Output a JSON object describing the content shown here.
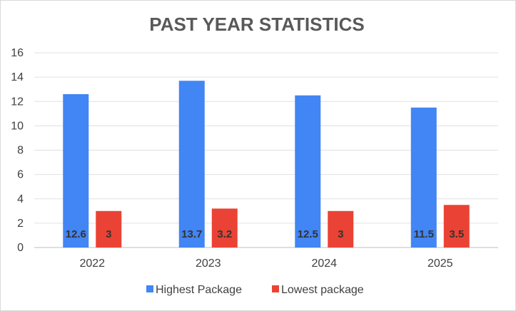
{
  "chart_data": {
    "type": "bar",
    "title": "PAST YEAR STATISTICS",
    "categories": [
      "2022",
      "2023",
      "2024",
      "2025"
    ],
    "series": [
      {
        "name": "Highest Package",
        "values": [
          12.6,
          13.7,
          12.5,
          11.5
        ],
        "color": "#4285f4",
        "labels": [
          "12.6",
          "13.7",
          "12.5",
          "11.5"
        ]
      },
      {
        "name": "Lowest package",
        "values": [
          3,
          3.2,
          3,
          3.5
        ],
        "color": "#ea4335",
        "labels": [
          "3",
          "3.2",
          "3",
          "3.5"
        ]
      }
    ],
    "xlabel": "",
    "ylabel": "",
    "ylim": [
      0,
      16
    ],
    "yticks": [
      "0",
      "2",
      "4",
      "6",
      "8",
      "10",
      "12",
      "14",
      "16"
    ],
    "grid": true,
    "legend": "bottom"
  }
}
